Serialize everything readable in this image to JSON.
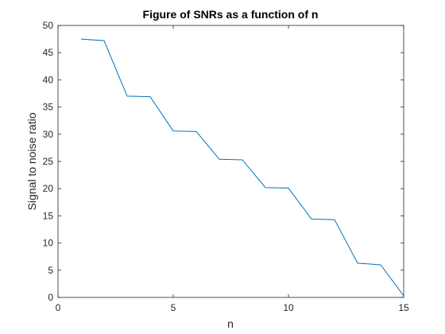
{
  "chart_data": {
    "type": "line",
    "title": "Figure of SNRs as a function of n",
    "xlabel": "n",
    "ylabel": "Signal to noise ratio",
    "xlim": [
      0,
      15
    ],
    "ylim": [
      0,
      50
    ],
    "xticks": [
      0,
      5,
      10,
      15
    ],
    "yticks": [
      0,
      5,
      10,
      15,
      20,
      25,
      30,
      35,
      40,
      45,
      50
    ],
    "grid": false,
    "series": [
      {
        "color": "#0072BD",
        "x": [
          1,
          2,
          3,
          4,
          5,
          6,
          7,
          8,
          9,
          10,
          11,
          12,
          13,
          14,
          15
        ],
        "y": [
          47.5,
          47.2,
          37.0,
          36.9,
          30.6,
          30.5,
          25.4,
          25.3,
          20.2,
          20.1,
          14.4,
          14.3,
          6.3,
          6.0,
          0.3
        ]
      }
    ]
  }
}
